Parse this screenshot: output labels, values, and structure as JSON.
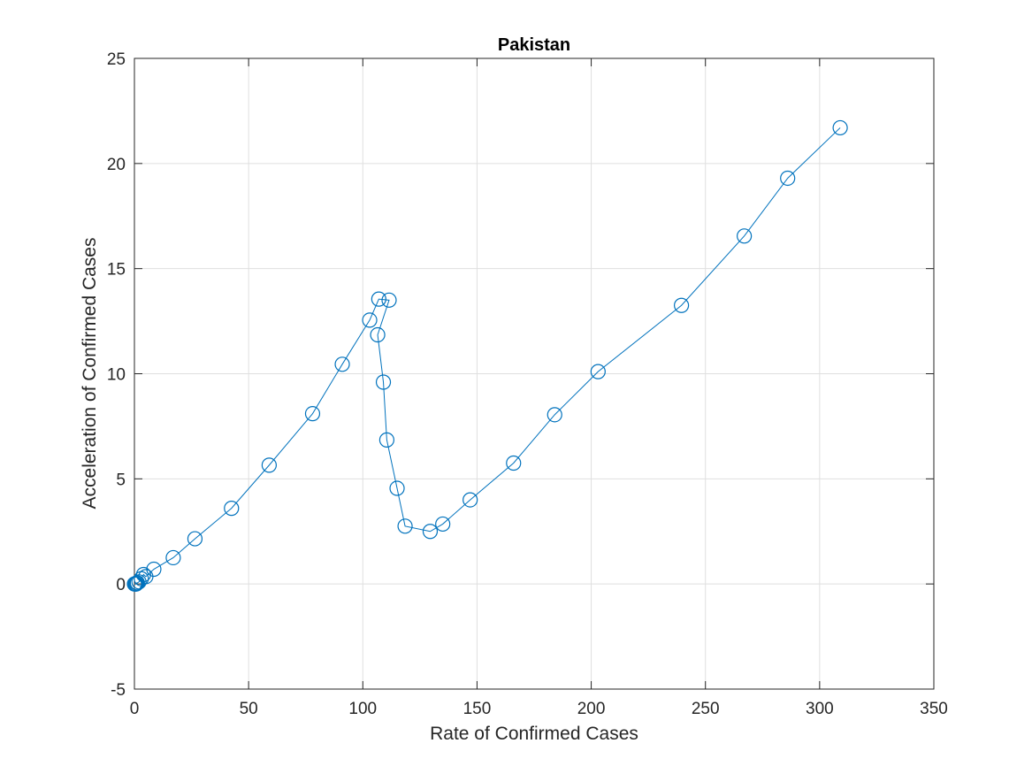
{
  "chart_data": {
    "type": "line",
    "title": "Pakistan",
    "xlabel": "Rate of Confirmed Cases",
    "ylabel": "Acceleration of Confirmed Cases",
    "xlim": [
      0,
      350
    ],
    "ylim": [
      -5,
      25
    ],
    "xticks": [
      "0",
      "50",
      "100",
      "150",
      "200",
      "250",
      "300",
      "350"
    ],
    "yticks": [
      "-5",
      "0",
      "5",
      "10",
      "15",
      "20",
      "25"
    ],
    "grid": true,
    "marker": "circle",
    "line_color": "#0072bd",
    "series": [
      {
        "x": [
          0.0,
          0.2,
          0.4,
          0.6,
          0.8,
          1.0,
          1.3,
          2.0,
          3.0,
          4.0,
          5.0,
          8.5,
          17,
          26.5,
          42.5,
          59,
          78,
          91,
          103,
          107,
          111.5,
          106.5,
          109,
          110.5,
          115,
          118.5,
          129.5,
          135,
          147,
          166,
          184,
          203,
          239.5,
          267,
          286,
          309
        ],
        "y": [
          0.0,
          0.0,
          0.0,
          0.0,
          0.0,
          0.05,
          0.05,
          0.1,
          0.25,
          0.45,
          0.35,
          0.7,
          1.25,
          2.15,
          3.6,
          5.65,
          8.1,
          10.45,
          12.55,
          13.55,
          13.5,
          11.85,
          9.6,
          6.85,
          4.55,
          2.75,
          2.5,
          2.85,
          4.0,
          5.75,
          8.05,
          10.1,
          13.25,
          16.55,
          19.3,
          21.7
        ]
      }
    ]
  }
}
